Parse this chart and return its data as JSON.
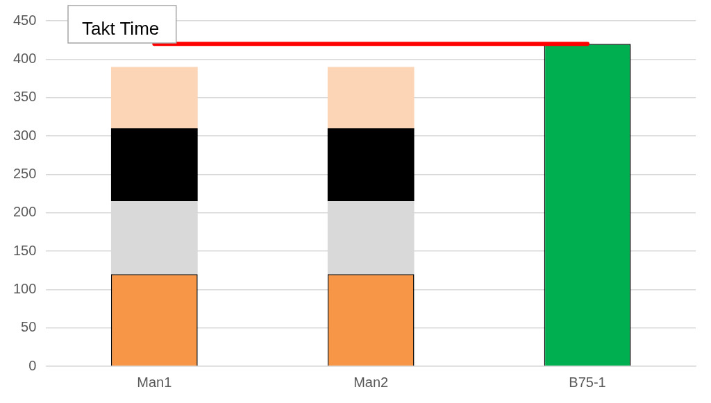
{
  "chart_data": {
    "type": "bar",
    "stacked": true,
    "categories": [
      "Man1",
      "Man2",
      "B75-1"
    ],
    "series": [
      {
        "color": "#f79646",
        "values": [
          120,
          120,
          null
        ]
      },
      {
        "color": "#d9d9d9",
        "values": [
          95,
          95,
          null
        ]
      },
      {
        "color": "#000000",
        "values": [
          95,
          95,
          null
        ]
      },
      {
        "color": "#fbd5b5",
        "values": [
          80,
          80,
          null
        ]
      },
      {
        "color": "#00b050",
        "values": [
          null,
          null,
          420
        ]
      }
    ],
    "ylim": [
      0,
      450
    ],
    "yticks": [
      0,
      50,
      100,
      150,
      200,
      250,
      300,
      350,
      400,
      450
    ],
    "grid": "y",
    "legend": false,
    "ref_lines": [
      {
        "axis": "y",
        "value": 420,
        "label": "Takt Time",
        "color": "#ff0000"
      }
    ]
  }
}
